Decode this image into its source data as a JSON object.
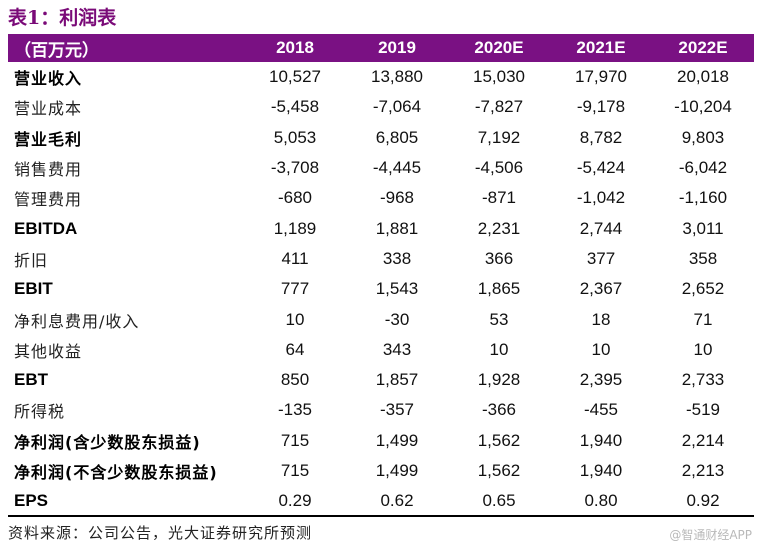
{
  "title": "表1：利润表",
  "header": {
    "unit_label": "（百万元）",
    "years": [
      "2018",
      "2019",
      "2020E",
      "2021E",
      "2022E"
    ]
  },
  "rows": [
    {
      "label": "营业收入",
      "bold": true,
      "values": [
        "10,527",
        "13,880",
        "15,030",
        "17,970",
        "20,018"
      ]
    },
    {
      "label": "营业成本",
      "bold": false,
      "values": [
        "-5,458",
        "-7,064",
        "-7,827",
        "-9,178",
        "-10,204"
      ]
    },
    {
      "label": "营业毛利",
      "bold": true,
      "values": [
        "5,053",
        "6,805",
        "7,192",
        "8,782",
        "9,803"
      ]
    },
    {
      "label": "销售费用",
      "bold": false,
      "values": [
        "-3,708",
        "-4,445",
        "-4,506",
        "-5,424",
        "-6,042"
      ]
    },
    {
      "label": "管理费用",
      "bold": false,
      "values": [
        "-680",
        "-968",
        "-871",
        "-1,042",
        "-1,160"
      ]
    },
    {
      "label": "EBITDA",
      "bold": true,
      "values": [
        "1,189",
        "1,881",
        "2,231",
        "2,744",
        "3,011"
      ]
    },
    {
      "label": "折旧",
      "bold": false,
      "values": [
        "411",
        "338",
        "366",
        "377",
        "358"
      ]
    },
    {
      "label": "EBIT",
      "bold": true,
      "values": [
        "777",
        "1,543",
        "1,865",
        "2,367",
        "2,652"
      ]
    },
    {
      "label": "净利息费用/收入",
      "bold": false,
      "values": [
        "10",
        "-30",
        "53",
        "18",
        "71"
      ]
    },
    {
      "label": "其他收益",
      "bold": false,
      "values": [
        "64",
        "343",
        "10",
        "10",
        "10"
      ]
    },
    {
      "label": "EBT",
      "bold": true,
      "values": [
        "850",
        "1,857",
        "1,928",
        "2,395",
        "2,733"
      ]
    },
    {
      "label": "所得税",
      "bold": false,
      "values": [
        "-135",
        "-357",
        "-366",
        "-455",
        "-519"
      ]
    },
    {
      "label": "净利润(含少数股东损益)",
      "bold": true,
      "values": [
        "715",
        "1,499",
        "1,562",
        "1,940",
        "2,214"
      ]
    },
    {
      "label": "净利润(不含少数股东损益)",
      "bold": true,
      "values": [
        "715",
        "1,499",
        "1,562",
        "1,940",
        "2,213"
      ]
    },
    {
      "label": "EPS",
      "bold": true,
      "values": [
        "0.29",
        "0.62",
        "0.65",
        "0.80",
        "0.92"
      ]
    }
  ],
  "source": "资料来源：公司公告，光大证券研究所预测",
  "watermark": "@智通财经APP",
  "colors": {
    "header_bg": "#7a1183",
    "title": "#7a0a78"
  }
}
